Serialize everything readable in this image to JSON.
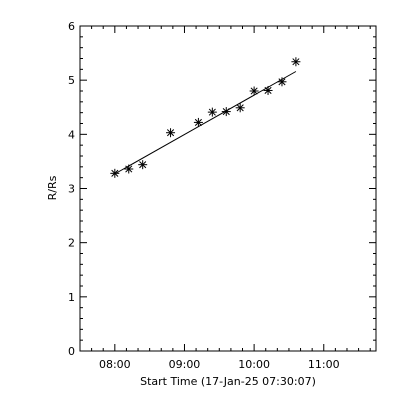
{
  "chart_data": {
    "type": "scatter",
    "title": "",
    "xlabel": "Start Time (17-Jan-25 07:30:07)",
    "ylabel": "R/Rs",
    "x_unit": "hours",
    "xlim": [
      7.5,
      11.75
    ],
    "ylim": [
      0,
      6
    ],
    "xticks": [
      {
        "value": 8.0,
        "label": "08:00"
      },
      {
        "value": 9.0,
        "label": "09:00"
      },
      {
        "value": 10.0,
        "label": "10:00"
      },
      {
        "value": 11.0,
        "label": "11:00"
      }
    ],
    "yticks": [
      {
        "value": 0,
        "label": "0"
      },
      {
        "value": 1,
        "label": "1"
      },
      {
        "value": 2,
        "label": "2"
      },
      {
        "value": 3,
        "label": "3"
      },
      {
        "value": 4,
        "label": "4"
      },
      {
        "value": 5,
        "label": "5"
      },
      {
        "value": 6,
        "label": "6"
      }
    ],
    "marker": "asterisk",
    "grid": false,
    "series": [
      {
        "points": [
          {
            "x": 8.0,
            "y": 3.28
          },
          {
            "x": 8.2,
            "y": 3.36
          },
          {
            "x": 8.4,
            "y": 3.44
          },
          {
            "x": 8.8,
            "y": 4.03
          },
          {
            "x": 9.2,
            "y": 4.22
          },
          {
            "x": 9.4,
            "y": 4.41
          },
          {
            "x": 9.6,
            "y": 4.42
          },
          {
            "x": 9.8,
            "y": 4.49
          },
          {
            "x": 10.0,
            "y": 4.8
          },
          {
            "x": 10.2,
            "y": 4.81
          },
          {
            "x": 10.4,
            "y": 4.97
          },
          {
            "x": 10.6,
            "y": 5.34
          }
        ]
      }
    ],
    "fit_line": {
      "x": [
        8.0,
        10.6
      ],
      "y": [
        3.27,
        5.16
      ]
    },
    "colors": {
      "foreground": "#000000",
      "background": "#ffffff"
    }
  }
}
